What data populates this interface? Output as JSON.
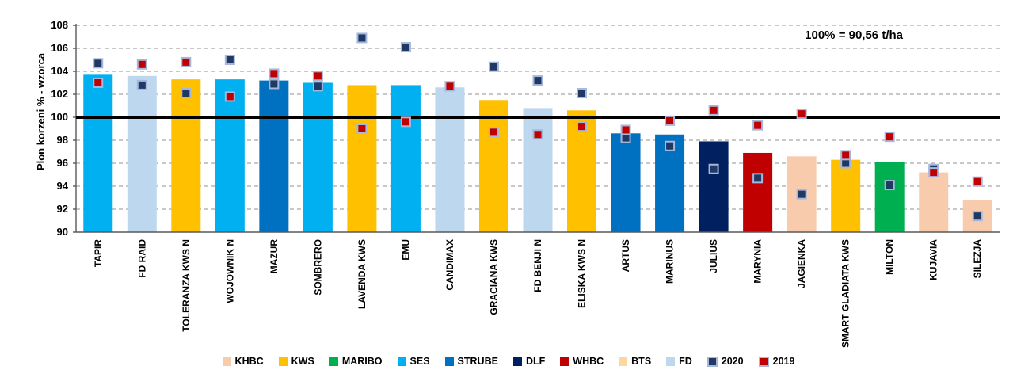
{
  "chart_data": {
    "type": "bar",
    "y_axis_title": "Plon korzeni % - wzorca",
    "annotation": "100% = 90,56 t/ha",
    "ylim": [
      90,
      108
    ],
    "ytick_step": 2,
    "reference_line_value": 100,
    "grid": "horizontal-dashed",
    "legend_position": "bottom",
    "series_note": "bars = breeder color; square markers = year results",
    "marker_series": [
      {
        "name": "2020",
        "fill": "#1F3864",
        "stroke": "#A6B7DC"
      },
      {
        "name": "2019",
        "fill": "#C00000",
        "stroke": "#A6B7DC"
      }
    ],
    "breeder_colors": {
      "KHBC": "#F8CBAD",
      "KWS": "#FFC000",
      "MARIBO": "#00B050",
      "SES": "#00B0F0",
      "STRUBE": "#0070C0",
      "DLF": "#002060",
      "WHBC": "#C00000",
      "BTS": "#FCD89E",
      "FD": "#BDD7EE"
    },
    "categories": [
      "TAPIR",
      "FD RAID",
      "TOLERANZA KWS N",
      "WOJOWNIK N",
      "MAZUR",
      "SOMBRERO",
      "LAVENDA KWS",
      "EMU",
      "CANDIMAX",
      "GRACIANA KWS",
      "FD BENJI N",
      "ELISKA KWS N",
      "ARTUS",
      "MARINUS",
      "JULIUS",
      "MARYNIA",
      "JAGIENKA",
      "SMART GLADIATA KWS",
      "MILTON",
      "KUJAVIA",
      "SILEZJA"
    ],
    "bars": [
      {
        "variety": "TAPIR",
        "breeder": "SES",
        "value": 103.7,
        "y2020": 104.7,
        "y2019": 103.0
      },
      {
        "variety": "FD RAID",
        "breeder": "FD",
        "value": 103.6,
        "y2020": 102.8,
        "y2019": 104.6
      },
      {
        "variety": "TOLERANZA KWS N",
        "breeder": "KWS",
        "value": 103.3,
        "y2020": 102.1,
        "y2019": 104.8
      },
      {
        "variety": "WOJOWNIK N",
        "breeder": "SES",
        "value": 103.3,
        "y2020": 105.0,
        "y2019": 101.8
      },
      {
        "variety": "MAZUR",
        "breeder": "STRUBE",
        "value": 103.2,
        "y2020": 102.9,
        "y2019": 103.8
      },
      {
        "variety": "SOMBRERO",
        "breeder": "SES",
        "value": 103.0,
        "y2020": 102.7,
        "y2019": 103.6
      },
      {
        "variety": "LAVENDA KWS",
        "breeder": "KWS",
        "value": 102.8,
        "y2020": 106.9,
        "y2019": 99.0
      },
      {
        "variety": "EMU",
        "breeder": "SES",
        "value": 102.8,
        "y2020": 106.1,
        "y2019": 99.6
      },
      {
        "variety": "CANDIMAX",
        "breeder": "FD",
        "value": 102.6,
        "y2020": 102.7,
        "y2019": 102.7
      },
      {
        "variety": "GRACIANA KWS",
        "breeder": "KWS",
        "value": 101.5,
        "y2020": 104.4,
        "y2019": 98.7
      },
      {
        "variety": "FD BENJI N",
        "breeder": "FD",
        "value": 100.8,
        "y2020": 103.2,
        "y2019": 98.5
      },
      {
        "variety": "ELISKA KWS N",
        "breeder": "KWS",
        "value": 100.6,
        "y2020": 102.1,
        "y2019": 99.2
      },
      {
        "variety": "ARTUS",
        "breeder": "STRUBE",
        "value": 98.6,
        "y2020": 98.2,
        "y2019": 98.9
      },
      {
        "variety": "MARINUS",
        "breeder": "STRUBE",
        "value": 98.5,
        "y2020": 97.5,
        "y2019": 99.7
      },
      {
        "variety": "JULIUS",
        "breeder": "DLF",
        "value": 97.9,
        "y2020": 95.5,
        "y2019": 100.6
      },
      {
        "variety": "MARYNIA",
        "breeder": "WHBC",
        "value": 96.9,
        "y2020": 94.7,
        "y2019": 99.3
      },
      {
        "variety": "JAGIENKA",
        "breeder": "KHBC",
        "value": 96.6,
        "y2020": 93.3,
        "y2019": 100.3
      },
      {
        "variety": "SMART GLADIATA KWS",
        "breeder": "KWS",
        "value": 96.3,
        "y2020": 96.0,
        "y2019": 96.7
      },
      {
        "variety": "MILTON",
        "breeder": "MARIBO",
        "value": 96.1,
        "y2020": 94.1,
        "y2019": 98.3
      },
      {
        "variety": "KUJAVIA",
        "breeder": "KHBC",
        "value": 95.2,
        "y2020": 95.5,
        "y2019": 95.2
      },
      {
        "variety": "SILEZJA",
        "breeder": "KHBC",
        "value": 92.8,
        "y2020": 91.4,
        "y2019": 94.4
      }
    ]
  },
  "legend": {
    "items": [
      {
        "label": "KHBC",
        "color": "#F8CBAD",
        "bordered": false
      },
      {
        "label": "KWS",
        "color": "#FFC000",
        "bordered": false
      },
      {
        "label": "MARIBO",
        "color": "#00B050",
        "bordered": false
      },
      {
        "label": "SES",
        "color": "#00B0F0",
        "bordered": false
      },
      {
        "label": "STRUBE",
        "color": "#0070C0",
        "bordered": false
      },
      {
        "label": "DLF",
        "color": "#002060",
        "bordered": false
      },
      {
        "label": "WHBC",
        "color": "#C00000",
        "bordered": false
      },
      {
        "label": "BTS",
        "color": "#FCD89E",
        "bordered": false
      },
      {
        "label": "FD",
        "color": "#BDD7EE",
        "bordered": false
      },
      {
        "label": "2020",
        "color": "#1F3864",
        "bordered": true
      },
      {
        "label": "2019",
        "color": "#C00000",
        "bordered": true
      }
    ]
  },
  "axes": {
    "grid_color": "#A8A8A8",
    "axis_color": "#595959",
    "reference_line_color": "#000000"
  }
}
